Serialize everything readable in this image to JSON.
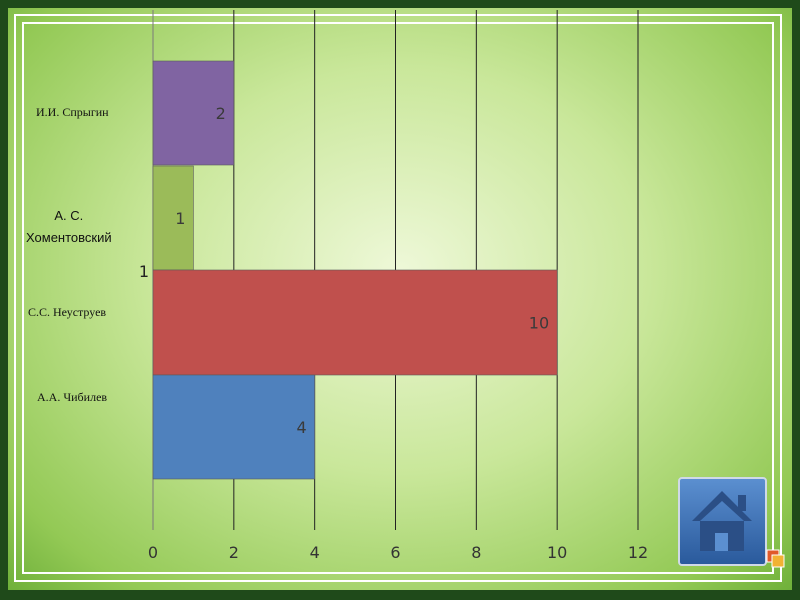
{
  "chart_data": {
    "type": "bar",
    "orientation": "horizontal",
    "categories": [
      "И.И. Спрыгин",
      "А. С. Хоментовский",
      "С.С. Неуструев",
      "А.А. Чибилев"
    ],
    "category_label_lines": [
      [
        "И.И. Спрыгин"
      ],
      [
        "А. С.",
        "Хоментовский"
      ],
      [
        "С.С. Неуструев"
      ],
      [
        "А.А. Чибилев"
      ]
    ],
    "values": [
      2,
      1,
      10,
      4
    ],
    "data_labels": [
      "2",
      "1",
      "10",
      "4"
    ],
    "extra_label": "1",
    "colors": [
      "#8064a2",
      "#9bbb59",
      "#c0504d",
      "#4f81bd"
    ],
    "label_color": "#3a3a3a",
    "xlim": [
      0,
      12
    ],
    "xticks": [
      "0",
      "2",
      "4",
      "6",
      "8",
      "10",
      "12"
    ],
    "grid": true,
    "title": "",
    "xlabel": "",
    "ylabel": ""
  },
  "home_icon": "home-icon"
}
